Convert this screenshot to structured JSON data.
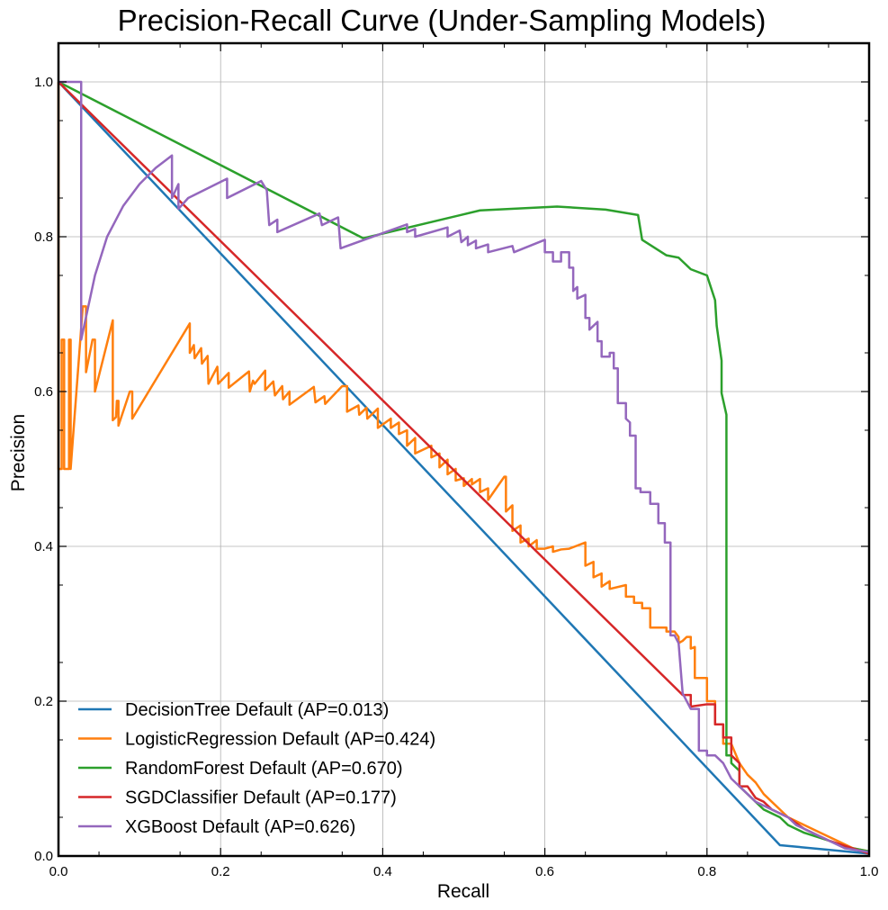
{
  "chart_data": {
    "type": "line",
    "title": "Precision-Recall Curve (Under-Sampling Models)",
    "xlabel": "Recall",
    "ylabel": "Precision",
    "xlim": [
      0,
      1
    ],
    "ylim": [
      0,
      1.05
    ],
    "xticks": [
      0.0,
      0.2,
      0.4,
      0.6,
      0.8,
      1.0
    ],
    "xtick_labels": [
      "0.0",
      "0.2",
      "0.4",
      "0.6",
      "0.8",
      "1.0"
    ],
    "yticks": [
      0.0,
      0.2,
      0.4,
      0.6,
      0.8,
      1.0
    ],
    "ytick_labels": [
      "0.0",
      "0.2",
      "0.4",
      "0.6",
      "0.8",
      "1.0"
    ],
    "grid": true,
    "legend_position": "lower-left",
    "series": [
      {
        "name": "DecisionTree Default (AP=0.013)",
        "color": "#1f77b4",
        "points": [
          [
            0.0,
            1.0
          ],
          [
            0.89,
            0.014
          ],
          [
            1.0,
            0.003
          ]
        ]
      },
      {
        "name": "LogisticRegression Default (AP=0.424)",
        "color": "#ff7f0e",
        "points": [
          [
            0.0,
            1.0
          ],
          [
            0.0,
            0.5
          ],
          [
            0.004,
            0.5
          ],
          [
            0.004,
            0.667
          ],
          [
            0.007,
            0.667
          ],
          [
            0.007,
            0.5
          ],
          [
            0.013,
            0.5
          ],
          [
            0.013,
            0.667
          ],
          [
            0.015,
            0.667
          ],
          [
            0.015,
            0.5
          ],
          [
            0.03,
            0.71
          ],
          [
            0.034,
            0.71
          ],
          [
            0.034,
            0.625
          ],
          [
            0.042,
            0.667
          ],
          [
            0.045,
            0.667
          ],
          [
            0.045,
            0.6
          ],
          [
            0.067,
            0.692
          ],
          [
            0.067,
            0.563
          ],
          [
            0.071,
            0.567
          ],
          [
            0.072,
            0.588
          ],
          [
            0.074,
            0.588
          ],
          [
            0.074,
            0.556
          ],
          [
            0.088,
            0.6
          ],
          [
            0.091,
            0.6
          ],
          [
            0.091,
            0.565
          ],
          [
            0.162,
            0.688
          ],
          [
            0.162,
            0.65
          ],
          [
            0.167,
            0.66
          ],
          [
            0.168,
            0.643
          ],
          [
            0.176,
            0.656
          ],
          [
            0.177,
            0.636
          ],
          [
            0.184,
            0.646
          ],
          [
            0.185,
            0.61
          ],
          [
            0.196,
            0.632
          ],
          [
            0.197,
            0.61
          ],
          [
            0.21,
            0.624
          ],
          [
            0.21,
            0.605
          ],
          [
            0.235,
            0.626
          ],
          [
            0.236,
            0.6
          ],
          [
            0.24,
            0.614
          ],
          [
            0.242,
            0.61
          ],
          [
            0.255,
            0.627
          ],
          [
            0.255,
            0.602
          ],
          [
            0.265,
            0.613
          ],
          [
            0.267,
            0.595
          ],
          [
            0.276,
            0.607
          ],
          [
            0.277,
            0.59
          ],
          [
            0.285,
            0.6
          ],
          [
            0.285,
            0.583
          ],
          [
            0.315,
            0.606
          ],
          [
            0.317,
            0.586
          ],
          [
            0.328,
            0.594
          ],
          [
            0.329,
            0.584
          ],
          [
            0.35,
            0.607
          ],
          [
            0.356,
            0.607
          ],
          [
            0.356,
            0.574
          ],
          [
            0.37,
            0.582
          ],
          [
            0.371,
            0.57
          ],
          [
            0.38,
            0.579
          ],
          [
            0.381,
            0.565
          ],
          [
            0.394,
            0.578
          ],
          [
            0.394,
            0.553
          ],
          [
            0.41,
            0.565
          ],
          [
            0.41,
            0.553
          ],
          [
            0.42,
            0.56
          ],
          [
            0.42,
            0.545
          ],
          [
            0.43,
            0.55
          ],
          [
            0.43,
            0.53
          ],
          [
            0.44,
            0.54
          ],
          [
            0.44,
            0.52
          ],
          [
            0.46,
            0.53
          ],
          [
            0.46,
            0.515
          ],
          [
            0.47,
            0.52
          ],
          [
            0.47,
            0.502
          ],
          [
            0.48,
            0.512
          ],
          [
            0.48,
            0.493
          ],
          [
            0.49,
            0.5
          ],
          [
            0.49,
            0.485
          ],
          [
            0.5,
            0.488
          ],
          [
            0.5,
            0.478
          ],
          [
            0.51,
            0.487
          ],
          [
            0.51,
            0.48
          ],
          [
            0.52,
            0.487
          ],
          [
            0.52,
            0.47
          ],
          [
            0.53,
            0.475
          ],
          [
            0.53,
            0.46
          ],
          [
            0.55,
            0.49
          ],
          [
            0.552,
            0.49
          ],
          [
            0.552,
            0.445
          ],
          [
            0.56,
            0.453
          ],
          [
            0.56,
            0.42
          ],
          [
            0.57,
            0.427
          ],
          [
            0.57,
            0.405
          ],
          [
            0.58,
            0.41
          ],
          [
            0.58,
            0.4
          ],
          [
            0.59,
            0.408
          ],
          [
            0.59,
            0.397
          ],
          [
            0.6,
            0.397
          ],
          [
            0.61,
            0.4
          ],
          [
            0.61,
            0.393
          ],
          [
            0.62,
            0.396
          ],
          [
            0.63,
            0.397
          ],
          [
            0.65,
            0.405
          ],
          [
            0.65,
            0.375
          ],
          [
            0.66,
            0.38
          ],
          [
            0.66,
            0.36
          ],
          [
            0.67,
            0.365
          ],
          [
            0.67,
            0.348
          ],
          [
            0.68,
            0.355
          ],
          [
            0.68,
            0.345
          ],
          [
            0.7,
            0.35
          ],
          [
            0.7,
            0.335
          ],
          [
            0.71,
            0.335
          ],
          [
            0.71,
            0.327
          ],
          [
            0.72,
            0.327
          ],
          [
            0.72,
            0.32
          ],
          [
            0.73,
            0.32
          ],
          [
            0.73,
            0.295
          ],
          [
            0.75,
            0.295
          ],
          [
            0.75,
            0.29
          ],
          [
            0.76,
            0.29
          ],
          [
            0.765,
            0.283
          ],
          [
            0.765,
            0.275
          ],
          [
            0.77,
            0.278
          ],
          [
            0.775,
            0.283
          ],
          [
            0.78,
            0.283
          ],
          [
            0.78,
            0.268
          ],
          [
            0.785,
            0.27
          ],
          [
            0.785,
            0.23
          ],
          [
            0.8,
            0.23
          ],
          [
            0.8,
            0.2
          ],
          [
            0.81,
            0.2
          ],
          [
            0.81,
            0.17
          ],
          [
            0.82,
            0.17
          ],
          [
            0.82,
            0.145
          ],
          [
            0.83,
            0.145
          ],
          [
            0.84,
            0.12
          ],
          [
            0.85,
            0.105
          ],
          [
            0.86,
            0.095
          ],
          [
            0.87,
            0.08
          ],
          [
            0.88,
            0.07
          ],
          [
            0.89,
            0.06
          ],
          [
            0.9,
            0.05
          ],
          [
            0.92,
            0.04
          ],
          [
            0.94,
            0.03
          ],
          [
            0.96,
            0.02
          ],
          [
            0.98,
            0.01
          ],
          [
            1.0,
            0.006
          ]
        ]
      },
      {
        "name": "RandomForest Default (AP=0.670)",
        "color": "#2ca02c",
        "points": [
          [
            0.0,
            1.0
          ],
          [
            0.376,
            0.798
          ],
          [
            0.52,
            0.834
          ],
          [
            0.615,
            0.839
          ],
          [
            0.675,
            0.835
          ],
          [
            0.715,
            0.828
          ],
          [
            0.72,
            0.796
          ],
          [
            0.75,
            0.776
          ],
          [
            0.765,
            0.773
          ],
          [
            0.78,
            0.758
          ],
          [
            0.8,
            0.75
          ],
          [
            0.81,
            0.718
          ],
          [
            0.812,
            0.685
          ],
          [
            0.818,
            0.64
          ],
          [
            0.818,
            0.598
          ],
          [
            0.824,
            0.57
          ],
          [
            0.824,
            0.13
          ],
          [
            0.83,
            0.13
          ],
          [
            0.83,
            0.12
          ],
          [
            0.84,
            0.11
          ],
          [
            0.84,
            0.09
          ],
          [
            0.85,
            0.08
          ],
          [
            0.86,
            0.07
          ],
          [
            0.87,
            0.06
          ],
          [
            0.89,
            0.05
          ],
          [
            0.9,
            0.04
          ],
          [
            0.92,
            0.03
          ],
          [
            0.95,
            0.02
          ],
          [
            0.97,
            0.012
          ],
          [
            1.0,
            0.006
          ]
        ]
      },
      {
        "name": "SGDClassifier Default (AP=0.177)",
        "color": "#d62728",
        "points": [
          [
            0.0,
            1.0
          ],
          [
            0.77,
            0.208
          ],
          [
            0.78,
            0.208
          ],
          [
            0.78,
            0.193
          ],
          [
            0.8,
            0.196
          ],
          [
            0.81,
            0.196
          ],
          [
            0.81,
            0.17
          ],
          [
            0.82,
            0.17
          ],
          [
            0.82,
            0.153
          ],
          [
            0.83,
            0.153
          ],
          [
            0.83,
            0.13
          ],
          [
            0.84,
            0.12
          ],
          [
            0.84,
            0.09
          ],
          [
            0.85,
            0.09
          ],
          [
            0.86,
            0.075
          ],
          [
            0.87,
            0.07
          ],
          [
            0.88,
            0.06
          ],
          [
            0.9,
            0.05
          ],
          [
            0.92,
            0.035
          ],
          [
            0.95,
            0.02
          ],
          [
            1.0,
            0.003
          ]
        ]
      },
      {
        "name": "XGBoost Default (AP=0.626)",
        "color": "#9467bd",
        "points": [
          [
            0.0,
            1.0
          ],
          [
            0.028,
            1.0
          ],
          [
            0.028,
            0.667
          ],
          [
            0.045,
            0.75
          ],
          [
            0.06,
            0.8
          ],
          [
            0.08,
            0.84
          ],
          [
            0.1,
            0.868
          ],
          [
            0.12,
            0.889
          ],
          [
            0.14,
            0.905
          ],
          [
            0.14,
            0.85
          ],
          [
            0.148,
            0.868
          ],
          [
            0.148,
            0.836
          ],
          [
            0.16,
            0.85
          ],
          [
            0.208,
            0.875
          ],
          [
            0.208,
            0.85
          ],
          [
            0.25,
            0.872
          ],
          [
            0.257,
            0.86
          ],
          [
            0.26,
            0.815
          ],
          [
            0.27,
            0.822
          ],
          [
            0.27,
            0.806
          ],
          [
            0.322,
            0.83
          ],
          [
            0.325,
            0.815
          ],
          [
            0.345,
            0.825
          ],
          [
            0.348,
            0.785
          ],
          [
            0.43,
            0.816
          ],
          [
            0.43,
            0.806
          ],
          [
            0.44,
            0.81
          ],
          [
            0.44,
            0.8
          ],
          [
            0.48,
            0.812
          ],
          [
            0.48,
            0.8
          ],
          [
            0.495,
            0.808
          ],
          [
            0.497,
            0.793
          ],
          [
            0.505,
            0.8
          ],
          [
            0.505,
            0.789
          ],
          [
            0.515,
            0.795
          ],
          [
            0.515,
            0.785
          ],
          [
            0.53,
            0.79
          ],
          [
            0.53,
            0.78
          ],
          [
            0.56,
            0.788
          ],
          [
            0.562,
            0.78
          ],
          [
            0.6,
            0.796
          ],
          [
            0.6,
            0.78
          ],
          [
            0.61,
            0.78
          ],
          [
            0.61,
            0.768
          ],
          [
            0.62,
            0.768
          ],
          [
            0.62,
            0.78
          ],
          [
            0.63,
            0.78
          ],
          [
            0.63,
            0.76
          ],
          [
            0.635,
            0.76
          ],
          [
            0.635,
            0.73
          ],
          [
            0.64,
            0.735
          ],
          [
            0.64,
            0.72
          ],
          [
            0.65,
            0.725
          ],
          [
            0.65,
            0.695
          ],
          [
            0.655,
            0.695
          ],
          [
            0.655,
            0.68
          ],
          [
            0.665,
            0.69
          ],
          [
            0.665,
            0.665
          ],
          [
            0.67,
            0.665
          ],
          [
            0.67,
            0.645
          ],
          [
            0.68,
            0.645
          ],
          [
            0.68,
            0.65
          ],
          [
            0.685,
            0.65
          ],
          [
            0.685,
            0.63
          ],
          [
            0.69,
            0.63
          ],
          [
            0.69,
            0.585
          ],
          [
            0.7,
            0.585
          ],
          [
            0.7,
            0.565
          ],
          [
            0.705,
            0.56
          ],
          [
            0.705,
            0.543
          ],
          [
            0.712,
            0.543
          ],
          [
            0.712,
            0.475
          ],
          [
            0.718,
            0.475
          ],
          [
            0.718,
            0.47
          ],
          [
            0.73,
            0.47
          ],
          [
            0.73,
            0.455
          ],
          [
            0.74,
            0.455
          ],
          [
            0.74,
            0.43
          ],
          [
            0.748,
            0.43
          ],
          [
            0.748,
            0.405
          ],
          [
            0.755,
            0.405
          ],
          [
            0.755,
            0.285
          ],
          [
            0.76,
            0.285
          ],
          [
            0.765,
            0.275
          ],
          [
            0.77,
            0.21
          ],
          [
            0.78,
            0.19
          ],
          [
            0.79,
            0.19
          ],
          [
            0.79,
            0.136
          ],
          [
            0.8,
            0.136
          ],
          [
            0.8,
            0.13
          ],
          [
            0.81,
            0.13
          ],
          [
            0.82,
            0.12
          ],
          [
            0.83,
            0.1
          ],
          [
            0.84,
            0.09
          ],
          [
            0.85,
            0.08
          ],
          [
            0.86,
            0.07
          ],
          [
            0.87,
            0.065
          ],
          [
            0.88,
            0.06
          ],
          [
            0.89,
            0.055
          ],
          [
            0.9,
            0.05
          ],
          [
            0.91,
            0.04
          ],
          [
            0.93,
            0.03
          ],
          [
            0.95,
            0.02
          ],
          [
            0.97,
            0.01
          ],
          [
            1.0,
            0.005
          ]
        ]
      }
    ]
  }
}
